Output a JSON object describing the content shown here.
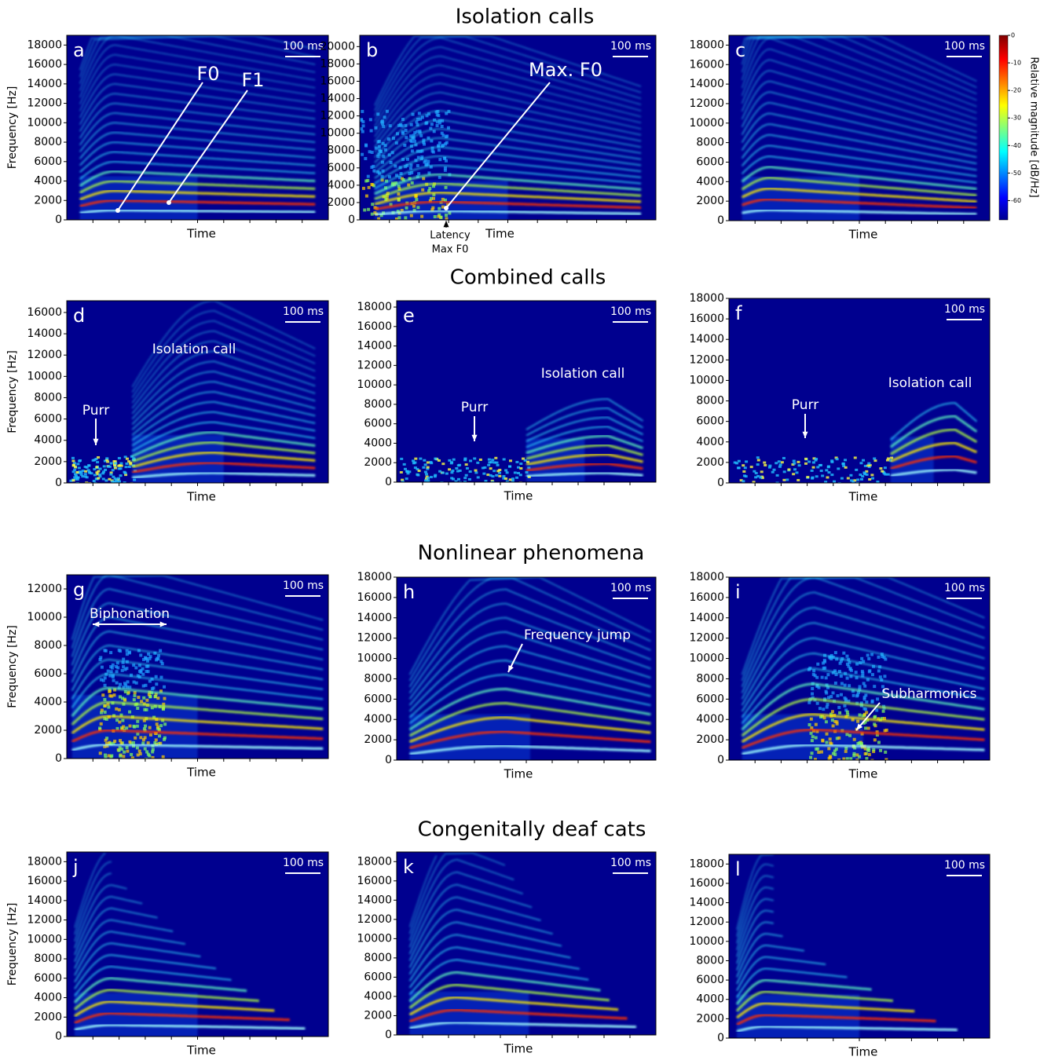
{
  "section_titles": [
    "Isolation calls",
    "Combined calls",
    "Nonlinear phenomena",
    "Congenitally deaf cats"
  ],
  "colorbar": {
    "label": "Relative magnitude [dB/Hz]",
    "ylim": [
      -67,
      0
    ],
    "yticks": [
      0,
      -10,
      -20,
      -30,
      -40,
      -50,
      -60
    ]
  },
  "chart_data": [
    {
      "type": "heatmap",
      "panel_label": "a",
      "ylabel": "Frequency [Hz]",
      "xlabel": "Time",
      "scale_bar": "100 ms",
      "ylim": [
        0,
        19000
      ],
      "yticks": [
        0,
        2000,
        4000,
        6000,
        8000,
        10000,
        12000,
        14000,
        16000,
        18000
      ],
      "annotations": [
        "F0",
        "F1"
      ]
    },
    {
      "type": "heatmap",
      "panel_label": "b",
      "xlabel": "Time",
      "scale_bar": "100 ms",
      "ylim": [
        0,
        21300
      ],
      "yticks": [
        0,
        2000,
        4000,
        6000,
        8000,
        10000,
        12000,
        14000,
        16000,
        18000,
        20000
      ],
      "annotations": [
        "Max. F0",
        "Latency",
        "Max F0"
      ]
    },
    {
      "type": "heatmap",
      "panel_label": "c",
      "xlabel": "Time",
      "scale_bar": "100 ms",
      "ylim": [
        0,
        19000
      ],
      "yticks": [
        0,
        2000,
        4000,
        6000,
        8000,
        10000,
        12000,
        14000,
        16000,
        18000
      ],
      "annotations": []
    },
    {
      "type": "heatmap",
      "panel_label": "d",
      "ylabel": "Frequency [Hz]",
      "xlabel": "Time",
      "scale_bar": "100 ms",
      "ylim": [
        0,
        17100
      ],
      "yticks": [
        0,
        2000,
        4000,
        6000,
        8000,
        10000,
        12000,
        14000,
        16000
      ],
      "annotations": [
        "Purr",
        "Isolation call"
      ]
    },
    {
      "type": "heatmap",
      "panel_label": "e",
      "xlabel": "Time",
      "scale_bar": "100 ms",
      "ylim": [
        0,
        18650
      ],
      "yticks": [
        0,
        2000,
        4000,
        6000,
        8000,
        10000,
        12000,
        14000,
        16000,
        18000
      ],
      "annotations": [
        "Purr",
        "Isolation call"
      ]
    },
    {
      "type": "heatmap",
      "panel_label": "f",
      "xlabel": "Time",
      "scale_bar": "100 ms",
      "ylim": [
        0,
        18000
      ],
      "yticks": [
        0,
        2000,
        4000,
        6000,
        8000,
        10000,
        12000,
        14000,
        16000,
        18000
      ],
      "annotations": [
        "Purr",
        "Isolation call"
      ]
    },
    {
      "type": "heatmap",
      "panel_label": "g",
      "ylabel": "Frequency [Hz]",
      "xlabel": "Time",
      "scale_bar": "100 ms",
      "ylim": [
        0,
        13000
      ],
      "yticks": [
        0,
        2000,
        4000,
        6000,
        8000,
        10000,
        12000
      ],
      "annotations": [
        "Biphonation"
      ]
    },
    {
      "type": "heatmap",
      "panel_label": "h",
      "xlabel": "Time",
      "scale_bar": "100 ms",
      "ylim": [
        0,
        18000
      ],
      "yticks": [
        0,
        2000,
        4000,
        6000,
        8000,
        10000,
        12000,
        14000,
        16000,
        18000
      ],
      "annotations": [
        "Frequency jump"
      ]
    },
    {
      "type": "heatmap",
      "panel_label": "i",
      "xlabel": "Time",
      "scale_bar": "100 ms",
      "ylim": [
        0,
        18000
      ],
      "yticks": [
        0,
        2000,
        4000,
        6000,
        8000,
        10000,
        12000,
        14000,
        16000,
        18000
      ],
      "annotations": [
        "Subharmonics"
      ]
    },
    {
      "type": "heatmap",
      "panel_label": "j",
      "ylabel": "Frequency [Hz]",
      "xlabel": "Time",
      "scale_bar": "100 ms",
      "ylim": [
        0,
        19000
      ],
      "yticks": [
        0,
        2000,
        4000,
        6000,
        8000,
        10000,
        12000,
        14000,
        16000,
        18000
      ],
      "annotations": []
    },
    {
      "type": "heatmap",
      "panel_label": "k",
      "xlabel": "Time",
      "scale_bar": "100 ms",
      "ylim": [
        0,
        19000
      ],
      "yticks": [
        0,
        2000,
        4000,
        6000,
        8000,
        10000,
        12000,
        14000,
        16000,
        18000
      ],
      "annotations": []
    },
    {
      "type": "heatmap",
      "panel_label": "l",
      "xlabel": "Time",
      "scale_bar": "100 ms",
      "ylim": [
        0,
        19000
      ],
      "yticks": [
        0,
        2000,
        4000,
        6000,
        8000,
        10000,
        12000,
        14000,
        16000,
        18000
      ],
      "annotations": []
    }
  ]
}
